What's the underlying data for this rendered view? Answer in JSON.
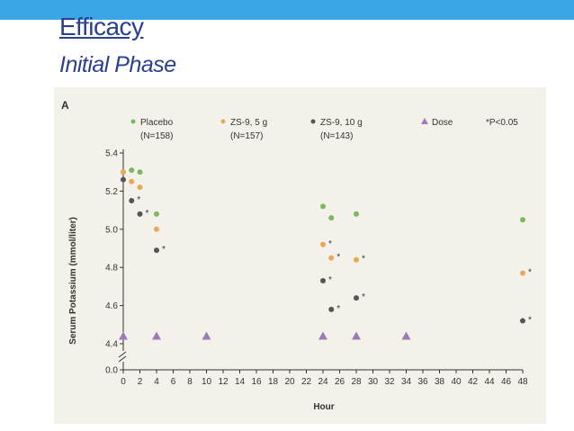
{
  "slide": {
    "title": "Efficacy",
    "subtitle": "Initial Phase"
  },
  "colors": {
    "top_bar": "#3aa6e6",
    "title": "#2a3f8f",
    "figure_bg": "#f3f1ea",
    "placebo": "#7cb860",
    "zs9_5g": "#e8a85a",
    "zs9_10g": "#555555",
    "dose": "#9b7bb8"
  },
  "chart_data": {
    "type": "scatter",
    "panel_label": "A",
    "xlabel": "Hour",
    "ylabel": "Serum Potassium (mmol/liter)",
    "xlim": [
      0,
      48
    ],
    "ylim": [
      4.4,
      5.4
    ],
    "x_ticks": [
      0,
      2,
      4,
      6,
      8,
      10,
      12,
      14,
      16,
      18,
      20,
      22,
      24,
      26,
      28,
      30,
      32,
      34,
      36,
      38,
      40,
      42,
      44,
      46,
      48
    ],
    "y_ticks": [
      4.4,
      4.6,
      4.8,
      5.0,
      5.2,
      5.4
    ],
    "y_tick_labels": [
      "4.4",
      "4.6",
      "4.8",
      "5.0",
      "5.2",
      "5.4"
    ],
    "zero_tick_label": "0.0",
    "axis_break": true,
    "grid": false,
    "legend_position": "top",
    "legend": [
      {
        "key": "placebo",
        "label": "Placebo",
        "sublabel": "(N=158)",
        "marker": "dot"
      },
      {
        "key": "zs9_5g",
        "label": "ZS-9, 5 g",
        "sublabel": "(N=157)",
        "marker": "dot"
      },
      {
        "key": "zs9_10g",
        "label": "ZS-9, 10 g",
        "sublabel": "(N=143)",
        "marker": "dot"
      },
      {
        "key": "dose",
        "label": "Dose",
        "sublabel": "",
        "marker": "triangle"
      },
      {
        "key": "sig",
        "label": "*P<0.05",
        "sublabel": "",
        "marker": "none"
      }
    ],
    "series": [
      {
        "name": "Placebo",
        "key": "placebo",
        "points": [
          [
            0,
            5.3
          ],
          [
            1,
            5.31
          ],
          [
            2,
            5.3
          ],
          [
            4,
            5.08
          ],
          [
            24,
            5.12
          ],
          [
            25,
            5.06
          ],
          [
            28,
            5.08
          ],
          [
            48,
            5.05
          ]
        ],
        "significant": []
      },
      {
        "name": "ZS-9, 5 g",
        "key": "zs9_5g",
        "points": [
          [
            0,
            5.3
          ],
          [
            1,
            5.25
          ],
          [
            2,
            5.22
          ],
          [
            4,
            5.0
          ],
          [
            24,
            4.92
          ],
          [
            25,
            4.85
          ],
          [
            28,
            4.84
          ],
          [
            48,
            4.77
          ]
        ],
        "significant": [
          false,
          false,
          false,
          false,
          true,
          true,
          true,
          true
        ]
      },
      {
        "name": "ZS-9, 10 g",
        "key": "zs9_10g",
        "points": [
          [
            0,
            5.26
          ],
          [
            1,
            5.15
          ],
          [
            2,
            5.08
          ],
          [
            4,
            4.89
          ],
          [
            24,
            4.73
          ],
          [
            25,
            4.58
          ],
          [
            28,
            4.64
          ],
          [
            48,
            4.52
          ]
        ],
        "significant": [
          false,
          true,
          true,
          true,
          true,
          true,
          true,
          true
        ]
      }
    ],
    "dose_hours": [
      0,
      4,
      10,
      24,
      28,
      34
    ],
    "dose_level": 4.44,
    "significance_marker": "*"
  }
}
